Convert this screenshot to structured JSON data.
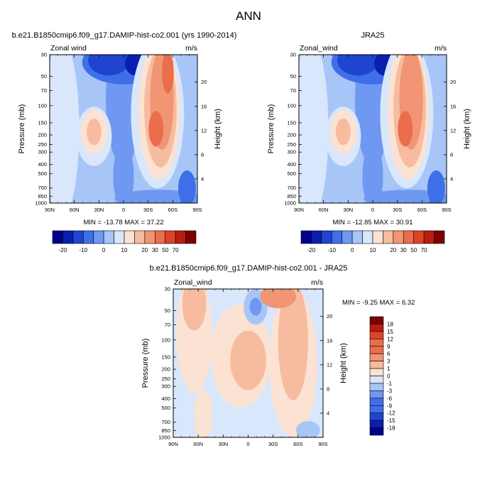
{
  "suptitle": "ANN",
  "chart_data": [
    {
      "type": "heatmap",
      "title": "b.e21.B1850cmip6.f09_g17.DAMIP-hist-co2.001 (yrs 1990-2014)",
      "left_label": "Zonal wind",
      "right_label": "m/s",
      "xlabel": "",
      "ylabel": "Pressure (mb)",
      "ylabel_right": "Height (km)",
      "x_ticks": [
        "90N",
        "60N",
        "30N",
        "0",
        "30S",
        "60S",
        "90S"
      ],
      "y_ticks": [
        "30",
        "50",
        "70",
        "100",
        "150",
        "200",
        "250",
        "300",
        "400",
        "500",
        "700",
        "850",
        "1000"
      ],
      "y_right_ticks": [
        "20",
        "16",
        "12",
        "8",
        "4"
      ],
      "min_max": "MIN = -13.78  MAX =  37.22",
      "colorbar": {
        "colors": [
          "#00008f",
          "#0a1fb0",
          "#1f45d0",
          "#3f6fe8",
          "#6f98f2",
          "#a8c5f8",
          "#d8e7fb",
          "#fbe2d2",
          "#f7bc9f",
          "#f19575",
          "#ea6d4c",
          "#dc4426",
          "#b81e10",
          "#7e0000"
        ],
        "labels": [
          "-20",
          "-10",
          "0",
          "10",
          "20",
          "30",
          "50",
          "70"
        ]
      }
    },
    {
      "type": "heatmap",
      "title": "JRA25",
      "left_label": "Zonal_wind",
      "right_label": "m/s",
      "xlabel": "",
      "ylabel": "Pressure (mb)",
      "ylabel_right": "Height (km)",
      "x_ticks": [
        "90N",
        "60N",
        "30N",
        "0",
        "30S",
        "60S",
        "90S"
      ],
      "y_ticks": [
        "30",
        "50",
        "70",
        "100",
        "150",
        "200",
        "250",
        "300",
        "400",
        "500",
        "700",
        "850",
        "1000"
      ],
      "y_right_ticks": [
        "20",
        "16",
        "12",
        "8",
        "4"
      ],
      "min_max": "MIN = -12.85  MAX =  30.91",
      "colorbar": {
        "colors": [
          "#00008f",
          "#0a1fb0",
          "#1f45d0",
          "#3f6fe8",
          "#6f98f2",
          "#a8c5f8",
          "#d8e7fb",
          "#fbe2d2",
          "#f7bc9f",
          "#f19575",
          "#ea6d4c",
          "#dc4426",
          "#b81e10",
          "#7e0000"
        ],
        "labels": [
          "-20",
          "-10",
          "0",
          "10",
          "20",
          "30",
          "50",
          "70"
        ]
      }
    },
    {
      "type": "heatmap",
      "title": "b.e21.B1850cmip6.f09_g17.DAMIP-hist-co2.001 - JRA25",
      "left_label": "Zonal_wind",
      "right_label": "m/s",
      "xlabel": "",
      "ylabel": "Pressure (mb)",
      "ylabel_right": "Height (km)",
      "x_ticks": [
        "90N",
        "60N",
        "30N",
        "0",
        "30S",
        "60S",
        "90S"
      ],
      "y_ticks": [
        "30",
        "50",
        "70",
        "100",
        "150",
        "200",
        "250",
        "300",
        "400",
        "500",
        "700",
        "850",
        "1000"
      ],
      "y_right_ticks": [
        "20",
        "16",
        "12",
        "8",
        "4"
      ],
      "min_max": "MIN =  -9.25  MAX =   6.32",
      "colorbar": {
        "colors": [
          "#00008f",
          "#0a1fb0",
          "#1f45d0",
          "#3f6fe8",
          "#6f98f2",
          "#a8c5f8",
          "#d8e7fb",
          "#fbe2d2",
          "#f7bc9f",
          "#f19575",
          "#ea6d4c",
          "#dc4426",
          "#b81e10",
          "#7e0000"
        ],
        "labels": [
          "-18",
          "-15",
          "-12",
          "-9",
          "-6",
          "-3",
          "-1",
          "0",
          "1",
          "3",
          "6",
          "9",
          "12",
          "15",
          "18"
        ]
      }
    }
  ]
}
